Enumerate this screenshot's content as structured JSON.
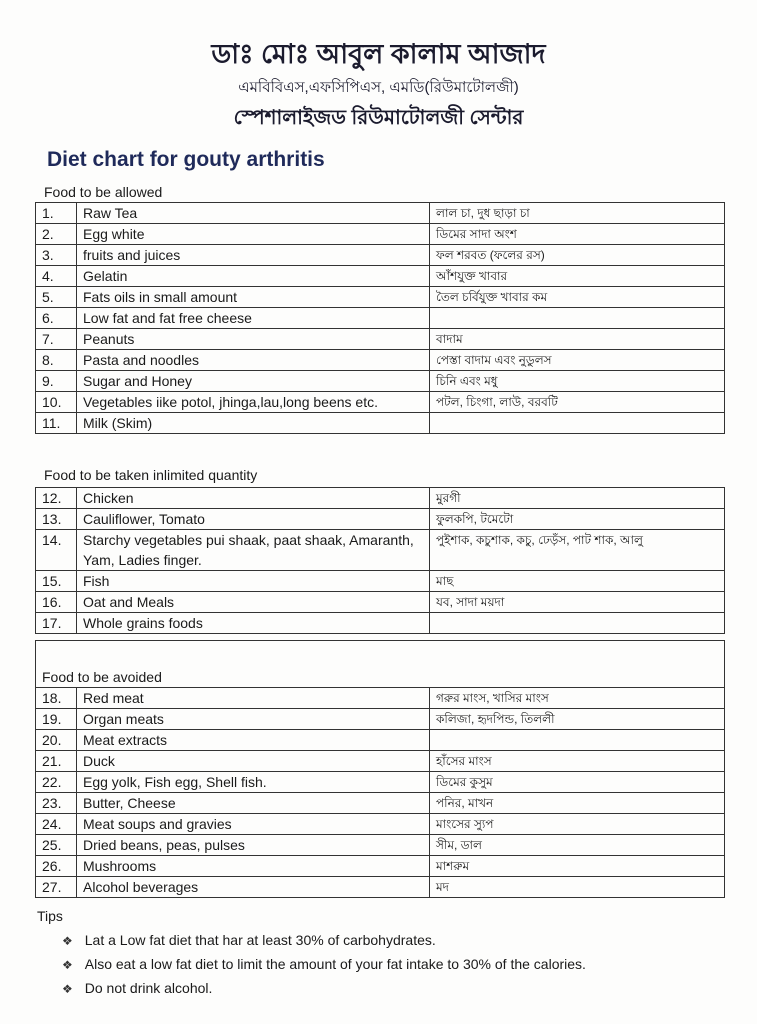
{
  "header": {
    "name": "ডাঃ মোঃ আবুল কালাম আজাদ",
    "degrees": "এমবিবিএস,এফসিপিএস, এমডি(রিউমাটোলজী)",
    "center": "স্পেশালাইজড রিউমাটোলজী সেন্টার"
  },
  "title": "Diet chart for gouty arthritis",
  "sections": [
    {
      "label": "Food to be allowed",
      "rows": [
        {
          "n": "1.",
          "en": "Raw Tea",
          "bn": "লাল চা, দুধ ছাড়া চা"
        },
        {
          "n": "2.",
          "en": "Egg white",
          "bn": "ডিমের সাদা অংশ"
        },
        {
          "n": "3.",
          "en": "fruits and juices",
          "bn": "ফল শরবত (ফলের রস)"
        },
        {
          "n": "4.",
          "en": "Gelatin",
          "bn": "আঁশযুক্ত খাবার"
        },
        {
          "n": "5.",
          "en": "Fats oils in small amount",
          "bn": "তৈল চর্বিযুক্ত খাবার কম"
        },
        {
          "n": "6.",
          "en": "Low fat and fat free cheese",
          "bn": ""
        },
        {
          "n": "7.",
          "en": "Peanuts",
          "bn": "বাদাম"
        },
        {
          "n": "8.",
          "en": "Pasta and noodles",
          "bn": "পেস্তা বাদাম এবং নুডুলস"
        },
        {
          "n": "9.",
          "en": "Sugar and Honey",
          "bn": "চিনি এবং মধু"
        },
        {
          "n": "10.",
          "en": "Vegetables iike potol, jhinga,lau,long beens etc.",
          "bn": "পটল, চিংগা, লাউ, বরবটি"
        },
        {
          "n": "11.",
          "en": "Milk (Skim)",
          "bn": ""
        }
      ]
    },
    {
      "label": "Food to be taken inlimited quantity",
      "rows": [
        {
          "n": "12.",
          "en": "Chicken",
          "bn": "মুরগী"
        },
        {
          "n": "13.",
          "en": "Cauliflower, Tomato",
          "bn": "ফুলকপি, টমেটো"
        },
        {
          "n": "14.",
          "en": "Starchy vegetables pui shaak, paat shaak, Amaranth, Yam, Ladies finger.",
          "bn": "পুইশাক, কচুশাক, কচু, ঢেড়ঁস, পাট শাক, আলু"
        },
        {
          "n": "15.",
          "en": "Fish",
          "bn": "মাছ"
        },
        {
          "n": "16.",
          "en": "Oat and Meals",
          "bn": "যব, সাদা ময়দা"
        },
        {
          "n": "17.",
          "en": "Whole grains foods",
          "bn": ""
        }
      ]
    },
    {
      "label": "Food to be avoided",
      "rows": [
        {
          "n": "18.",
          "en": "Red meat",
          "bn": "গরুর মাংস, খাসির মাংস"
        },
        {
          "n": "19.",
          "en": "Organ meats",
          "bn": "কলিজা, হৃদপিন্ড, তিললী"
        },
        {
          "n": "20.",
          "en": "Meat extracts",
          "bn": ""
        },
        {
          "n": "21.",
          "en": "Duck",
          "bn": "হাঁসের মাংস"
        },
        {
          "n": "22.",
          "en": "Egg yolk, Fish egg, Shell fish.",
          "bn": "ডিমের কুসুম"
        },
        {
          "n": "23.",
          "en": "Butter, Cheese",
          "bn": "পনির, মাখন"
        },
        {
          "n": "24.",
          "en": "Meat soups and gravies",
          "bn": "মাংসের স্যুপ"
        },
        {
          "n": "25.",
          "en": "Dried beans, peas, pulses",
          "bn": "সীম, ডাল"
        },
        {
          "n": "26.",
          "en": "Mushrooms",
          "bn": "মাশরুম"
        },
        {
          "n": "27.",
          "en": "Alcohol beverages",
          "bn": "মদ"
        }
      ]
    }
  ],
  "tips": {
    "label": "Tips",
    "bullet_icon": "diamond-bullet-icon",
    "items": [
      "Lat a Low fat diet that har at least 30% of carbohydrates.",
      "Also eat a low fat diet to limit the amount of your fat intake to 30% of the calories.",
      "Do not drink alcohol."
    ]
  }
}
